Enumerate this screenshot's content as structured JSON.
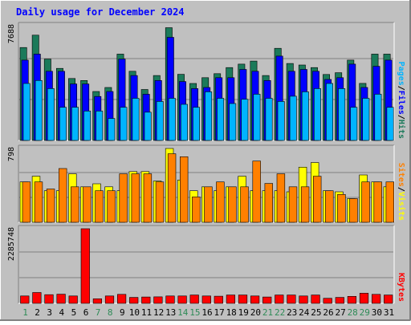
{
  "page": {
    "title": "Daily usage for December 2024"
  },
  "colors": {
    "background": "#c0c0c0",
    "page_bg": "#ffffff",
    "title": "#0000ff",
    "hits": "#1b7a5a",
    "files": "#0000ff",
    "pages": "#00b4ff",
    "visits": "#ffff00",
    "sites": "#ff8000",
    "kbytes": "#ff0000",
    "weekday_label": "#006400",
    "weekend_label": "#2e8b57"
  },
  "chart_data": [
    {
      "type": "bar",
      "panel": "hits-files-pages",
      "y_max_label": "7688",
      "ylim": [
        0,
        7688
      ],
      "legend": [
        {
          "name": "Pages",
          "color": "#00b4ff"
        },
        {
          "name": "Files",
          "color": "#0000ff"
        },
        {
          "name": "Hits",
          "color": "#1b7a5a"
        }
      ],
      "legend_sep": "/",
      "categories": [
        "1",
        "2",
        "3",
        "4",
        "5",
        "6",
        "7",
        "8",
        "9",
        "10",
        "11",
        "12",
        "13",
        "14",
        "15",
        "16",
        "17",
        "18",
        "19",
        "20",
        "21",
        "22",
        "23",
        "24",
        "25",
        "26",
        "27",
        "28",
        "29",
        "30",
        "31"
      ],
      "series": [
        {
          "name": "Hits",
          "values": [
            6225,
            7054,
            5449,
            4828,
            4151,
            4017,
            3280,
            3549,
            5785,
            4632,
            3416,
            4350,
            7554,
            4430,
            3816,
            4204,
            4473,
            4883,
            5114,
            5317,
            4351,
            6174,
            5154,
            5053,
            4883,
            4419,
            4539,
            5382,
            3821,
            5785,
            5785
          ]
        },
        {
          "name": "Files",
          "values": [
            5382,
            5786,
            4632,
            4632,
            3786,
            3786,
            2948,
            3280,
            5449,
            4351,
            3095,
            4017,
            6910,
            3947,
            3474,
            3549,
            4204,
            4204,
            4759,
            4632,
            4017,
            5649,
            4632,
            4757,
            4632,
            4088,
            4204,
            5114,
            3549,
            4968,
            5382
          ]
        },
        {
          "name": "Pages",
          "values": [
            3816,
            4017,
            3474,
            2218,
            2218,
            1970,
            1970,
            1475,
            2218,
            2823,
            1890,
            2613,
            2823,
            2420,
            2218,
            3257,
            2823,
            2473,
            2760,
            3095,
            2823,
            2613,
            2963,
            3257,
            3474,
            3816,
            3474,
            2218,
            2823,
            3095,
            2218
          ]
        }
      ]
    },
    {
      "type": "bar",
      "panel": "visits-sites",
      "y_max_label": "798",
      "ylim": [
        0,
        798
      ],
      "legend": [
        {
          "name": "Sites",
          "color": "#ff8000"
        },
        {
          "name": "Visits",
          "color": "#ffff00"
        }
      ],
      "legend_sep": "/",
      "categories": [
        "1",
        "2",
        "3",
        "4",
        "5",
        "6",
        "7",
        "8",
        "9",
        "10",
        "11",
        "12",
        "13",
        "14",
        "15",
        "16",
        "17",
        "18",
        "19",
        "20",
        "21",
        "22",
        "23",
        "24",
        "25",
        "26",
        "27",
        "28",
        "29",
        "30",
        "31"
      ],
      "series": [
        {
          "name": "Visits",
          "values": [
            436,
            498,
            341,
            341,
            524,
            383,
            416,
            383,
            341,
            548,
            548,
            446,
            798,
            457,
            341,
            383,
            341,
            383,
            498,
            341,
            341,
            341,
            330,
            596,
            645,
            341,
            330,
            256,
            512,
            436,
            383
          ]
        },
        {
          "name": "Sites",
          "values": [
            436,
            436,
            360,
            581,
            383,
            383,
            341,
            341,
            524,
            524,
            524,
            436,
            741,
            709,
            274,
            383,
            436,
            383,
            383,
            662,
            420,
            524,
            383,
            383,
            498,
            341,
            301,
            256,
            436,
            436,
            436
          ]
        }
      ]
    },
    {
      "type": "bar",
      "panel": "kbytes",
      "y_max_label": "2285748",
      "ylim": [
        0,
        2285748
      ],
      "legend": [
        {
          "name": "KBytes",
          "color": "#ff0000"
        }
      ],
      "categories": [
        "1",
        "2",
        "3",
        "4",
        "5",
        "6",
        "7",
        "8",
        "9",
        "10",
        "11",
        "12",
        "13",
        "14",
        "15",
        "16",
        "17",
        "18",
        "19",
        "20",
        "21",
        "22",
        "23",
        "24",
        "25",
        "26",
        "27",
        "28",
        "29",
        "30",
        "31"
      ],
      "series": [
        {
          "name": "KBytes",
          "values": [
            226000,
            332000,
            266000,
            280000,
            226000,
            2285748,
            139000,
            226000,
            276000,
            183000,
            193000,
            200000,
            226000,
            226000,
            256000,
            226000,
            218000,
            256000,
            256000,
            226000,
            193000,
            256000,
            256000,
            226000,
            256000,
            156000,
            183000,
            213000,
            310000,
            276000,
            256000
          ]
        }
      ]
    }
  ],
  "x_axis": {
    "labels": [
      "1",
      "2",
      "3",
      "4",
      "5",
      "6",
      "7",
      "8",
      "9",
      "10",
      "11",
      "12",
      "13",
      "14",
      "15",
      "16",
      "17",
      "18",
      "19",
      "20",
      "21",
      "22",
      "23",
      "24",
      "25",
      "26",
      "27",
      "28",
      "29",
      "30",
      "31"
    ],
    "weekend": [
      1,
      7,
      8,
      14,
      15,
      21,
      22,
      28,
      29
    ]
  }
}
